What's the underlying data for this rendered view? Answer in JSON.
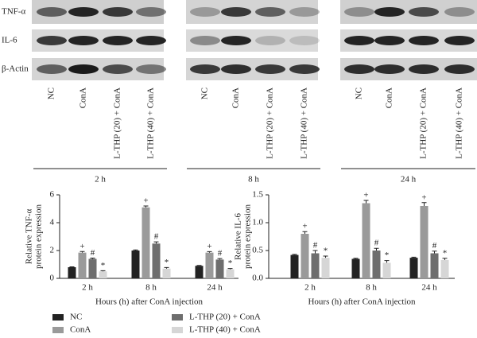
{
  "blot": {
    "rows": [
      "TNF-α",
      "IL-6",
      "β-Actin"
    ],
    "lanes": [
      "NC",
      "ConA",
      "L-THP (20) + ConA",
      "L-THP (40) + ConA"
    ],
    "times": [
      "2 h",
      "8 h",
      "24 h"
    ]
  },
  "chart_data": [
    {
      "type": "bar",
      "categories": [
        "2 h",
        "8 h",
        "24 h"
      ],
      "ylabel": [
        "Relative TNF-α",
        "protein expression"
      ],
      "xlabel": "Hours (h) after ConA injection",
      "ylim": [
        0,
        6
      ],
      "yticks": [
        0,
        2,
        4,
        6
      ],
      "series": [
        {
          "name": "NC",
          "color": "#222222",
          "values": [
            0.8,
            2.0,
            0.9
          ],
          "errors": [
            0.03,
            0.04,
            0.03
          ]
        },
        {
          "name": "ConA",
          "color": "#9a9a9a",
          "values": [
            1.85,
            5.1,
            1.85
          ],
          "errors": [
            0.08,
            0.1,
            0.07
          ],
          "markers": [
            "+",
            "+",
            "+"
          ]
        },
        {
          "name": "L-THP (20) + ConA",
          "color": "#6e6e6e",
          "values": [
            1.4,
            2.5,
            1.35
          ],
          "errors": [
            0.06,
            0.12,
            0.07
          ],
          "markers": [
            "#",
            "#",
            "#"
          ]
        },
        {
          "name": "L-THP (40) + ConA",
          "color": "#d6d6d6",
          "values": [
            0.5,
            0.7,
            0.65
          ],
          "errors": [
            0.05,
            0.08,
            0.06
          ],
          "markers": [
            "*",
            "*",
            "*"
          ]
        }
      ]
    },
    {
      "type": "bar",
      "categories": [
        "2 h",
        "8 h",
        "24 h"
      ],
      "ylabel": [
        "Relative IL-6",
        "protein expression"
      ],
      "xlabel": "Hours (h) after ConA injection",
      "ylim": [
        0,
        1.5
      ],
      "yticks": [
        {
          "value": 0,
          "label": "0.0"
        },
        0.5,
        {
          "value": 1,
          "label": "1.0"
        },
        1.5
      ],
      "series": [
        {
          "color": "#222222",
          "values": [
            0.42,
            0.35,
            0.37
          ],
          "errors": [
            0.01,
            0.01,
            0.01
          ]
        },
        {
          "color": "#9a9a9a",
          "values": [
            0.8,
            1.35,
            1.3
          ],
          "errors": [
            0.04,
            0.05,
            0.06
          ],
          "markers": [
            "+",
            "+",
            "+"
          ]
        },
        {
          "color": "#6e6e6e",
          "values": [
            0.45,
            0.5,
            0.45
          ],
          "errors": [
            0.05,
            0.04,
            0.04
          ],
          "markers": [
            "#",
            "#",
            "#"
          ]
        },
        {
          "color": "#d6d6d6",
          "values": [
            0.37,
            0.28,
            0.33
          ],
          "errors": [
            0.03,
            0.04,
            0.03
          ],
          "markers": [
            "*",
            "*",
            "*"
          ]
        }
      ]
    }
  ]
}
